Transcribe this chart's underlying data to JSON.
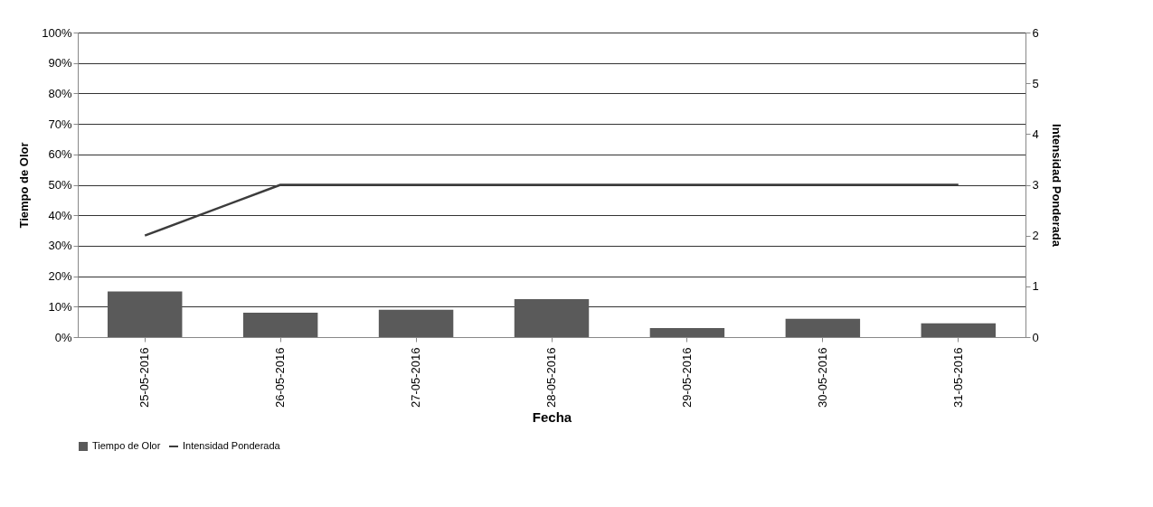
{
  "chart_data": {
    "type": "bar",
    "xlabel": "Fecha",
    "ylabel": "Tiempo de Olor",
    "y2label": "Intensidad Ponderada",
    "categories": [
      "25-05-2016",
      "26-05-2016",
      "27-05-2016",
      "28-05-2016",
      "29-05-2016",
      "30-05-2016",
      "31-05-2016"
    ],
    "series": [
      {
        "name": "Tiempo de Olor",
        "color": "#5a5a5a",
        "values": [
          15,
          8,
          9,
          12.5,
          3,
          6,
          4.5
        ]
      },
      {
        "name": "Intensidad Ponderada",
        "type": "line",
        "axis": "y2",
        "color": "#3c3c3c",
        "values": [
          2,
          3,
          3,
          3,
          3,
          3,
          3
        ]
      }
    ],
    "ylim": [
      0,
      100
    ],
    "yticks": [
      {
        "value": 0,
        "label": "0%"
      },
      {
        "value": 10,
        "label": "10%"
      },
      {
        "value": 20,
        "label": "20%"
      },
      {
        "value": 30,
        "label": "30%"
      },
      {
        "value": 40,
        "label": "40%"
      },
      {
        "value": 50,
        "label": "50%"
      },
      {
        "value": 60,
        "label": "60%"
      },
      {
        "value": 70,
        "label": "70%"
      },
      {
        "value": 80,
        "label": "80%"
      },
      {
        "value": 90,
        "label": "90%"
      },
      {
        "value": 100,
        "label": "100%"
      }
    ],
    "y2lim": [
      0,
      6
    ],
    "y2ticks": [
      0,
      1,
      2,
      3,
      4,
      5,
      6
    ],
    "grid": "y",
    "legend": "bottom",
    "marker": "none"
  }
}
